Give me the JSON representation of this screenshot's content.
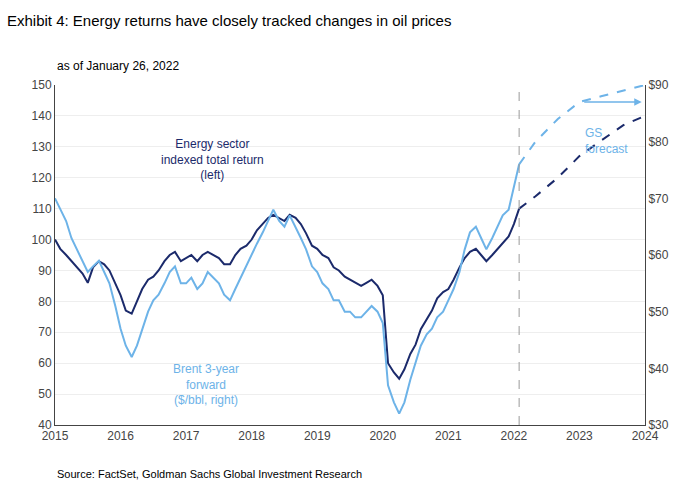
{
  "chart_data": {
    "type": "line",
    "title": "Exhibit 4: Energy returns have closely tracked changes in oil prices",
    "subtitle": "as of January 26, 2022",
    "source": "Source: FactSet, Goldman Sachs Global Investment Research",
    "xlim": [
      2015,
      2024
    ],
    "xticks": [
      2015,
      2016,
      2017,
      2018,
      2019,
      2020,
      2021,
      2022,
      2023,
      2024
    ],
    "ylim": [
      40,
      150
    ],
    "yticks": [
      40,
      50,
      60,
      70,
      80,
      90,
      100,
      110,
      120,
      130,
      140,
      150
    ],
    "y2lim": [
      30,
      90
    ],
    "y2ticks": [
      {
        "value": 30,
        "label": "$30"
      },
      {
        "value": 40,
        "label": "$40"
      },
      {
        "value": 50,
        "label": "$50"
      },
      {
        "value": 60,
        "label": "$60"
      },
      {
        "value": 70,
        "label": "$70"
      },
      {
        "value": 80,
        "label": "$80"
      },
      {
        "value": 90,
        "label": "$90"
      }
    ],
    "grid": "y",
    "series": [
      {
        "color": "#1b2a6b",
        "line_style": "solid",
        "axis": "y",
        "x": [
          2015.0,
          2015.08,
          2015.17,
          2015.25,
          2015.33,
          2015.42,
          2015.5,
          2015.58,
          2015.67,
          2015.75,
          2015.83,
          2015.92,
          2016.0,
          2016.08,
          2016.17,
          2016.25,
          2016.33,
          2016.42,
          2016.5,
          2016.58,
          2016.67,
          2016.75,
          2016.83,
          2016.92,
          2017.0,
          2017.08,
          2017.17,
          2017.25,
          2017.33,
          2017.42,
          2017.5,
          2017.58,
          2017.67,
          2017.75,
          2017.83,
          2017.92,
          2018.0,
          2018.08,
          2018.17,
          2018.25,
          2018.33,
          2018.42,
          2018.5,
          2018.58,
          2018.67,
          2018.75,
          2018.83,
          2018.92,
          2019.0,
          2019.08,
          2019.17,
          2019.25,
          2019.33,
          2019.42,
          2019.5,
          2019.58,
          2019.67,
          2019.75,
          2019.83,
          2019.92,
          2020.0,
          2020.08,
          2020.17,
          2020.25,
          2020.33,
          2020.42,
          2020.5,
          2020.58,
          2020.67,
          2020.75,
          2020.83,
          2020.92,
          2021.0,
          2021.08,
          2021.17,
          2021.25,
          2021.33,
          2021.42,
          2021.5,
          2021.58,
          2021.67,
          2021.75,
          2021.83,
          2021.92,
          2022.0,
          2022.08
        ],
        "values": [
          100,
          97,
          95,
          93,
          91,
          89,
          86,
          91,
          93,
          92,
          90,
          86,
          82,
          77,
          76,
          80,
          84,
          87,
          88,
          90,
          93,
          95,
          96,
          93,
          94,
          95,
          93,
          95,
          96,
          95,
          94,
          92,
          92,
          95,
          97,
          98,
          100,
          103,
          105,
          107,
          108,
          107,
          106,
          108,
          107,
          105,
          102,
          98,
          97,
          95,
          94,
          91,
          90,
          88,
          87,
          86,
          85,
          86,
          87,
          85,
          82,
          60,
          57,
          55,
          58,
          63,
          66,
          71,
          74,
          77,
          81,
          83,
          84,
          87,
          91,
          94,
          96,
          97,
          95,
          93,
          95,
          97,
          99,
          101,
          105,
          110
        ]
      },
      {
        "color": "#1b2a6b",
        "line_style": "dash",
        "axis": "y",
        "x": [
          2022.08,
          2022.33,
          2022.67,
          2023.0,
          2023.33,
          2023.67,
          2024.0
        ],
        "values": [
          110,
          114,
          120,
          127,
          132,
          137,
          140
        ]
      },
      {
        "color": "#6db3e8",
        "line_style": "solid",
        "axis": "y2",
        "x": [
          2015.0,
          2015.08,
          2015.17,
          2015.25,
          2015.33,
          2015.42,
          2015.5,
          2015.58,
          2015.67,
          2015.75,
          2015.83,
          2015.92,
          2016.0,
          2016.08,
          2016.17,
          2016.25,
          2016.33,
          2016.42,
          2016.5,
          2016.58,
          2016.67,
          2016.75,
          2016.83,
          2016.92,
          2017.0,
          2017.08,
          2017.17,
          2017.25,
          2017.33,
          2017.42,
          2017.5,
          2017.58,
          2017.67,
          2017.75,
          2017.83,
          2017.92,
          2018.0,
          2018.08,
          2018.17,
          2018.25,
          2018.33,
          2018.42,
          2018.5,
          2018.58,
          2018.67,
          2018.75,
          2018.83,
          2018.92,
          2019.0,
          2019.08,
          2019.17,
          2019.25,
          2019.33,
          2019.42,
          2019.5,
          2019.58,
          2019.67,
          2019.75,
          2019.83,
          2019.92,
          2020.0,
          2020.08,
          2020.17,
          2020.25,
          2020.33,
          2020.42,
          2020.5,
          2020.58,
          2020.67,
          2020.75,
          2020.83,
          2020.92,
          2021.0,
          2021.08,
          2021.17,
          2021.25,
          2021.33,
          2021.42,
          2021.5,
          2021.58,
          2021.67,
          2021.75,
          2021.83,
          2021.92,
          2022.0,
          2022.08
        ],
        "values": [
          70,
          68,
          66,
          63,
          61,
          59,
          57,
          58,
          59,
          57,
          55,
          51,
          47,
          44,
          42,
          44,
          47,
          50,
          52,
          53,
          55,
          57,
          58,
          55,
          55,
          56,
          54,
          55,
          57,
          56,
          55,
          53,
          52,
          54,
          56,
          58,
          60,
          62,
          64,
          66,
          68,
          66,
          65,
          67,
          65,
          63,
          61,
          58,
          57,
          55,
          54,
          52,
          52,
          50,
          50,
          49,
          49,
          50,
          51,
          50,
          48,
          37,
          34,
          32,
          34,
          38,
          41,
          44,
          46,
          47,
          49,
          50,
          52,
          54,
          57,
          61,
          64,
          65,
          63,
          61,
          63,
          65,
          67,
          68,
          72,
          76
        ]
      },
      {
        "color": "#6db3e8",
        "line_style": "dash",
        "axis": "y2",
        "x": [
          2022.08,
          2022.33,
          2022.67,
          2023.0,
          2023.33,
          2023.67,
          2024.0
        ],
        "values": [
          76,
          80,
          84,
          87,
          88,
          89,
          90
        ]
      }
    ],
    "vlines": [
      2022.08
    ],
    "annotations": [
      {
        "text": "Energy sector\nindexed total return\n(left)",
        "x": 2017.4,
        "y": 126,
        "axis": "y",
        "color": "#1b2a6b",
        "align": "center"
      },
      {
        "text": "Brent 3-year\nforward\n($/bbl, right)",
        "x": 2017.3,
        "y": 53,
        "axis": "y",
        "color": "#6db3e8",
        "align": "center"
      },
      {
        "text": "GS\nforecast",
        "x": 2023.05,
        "y": 132,
        "axis": "y",
        "color": "#6db3e8",
        "align": "left"
      }
    ],
    "arrows": [
      {
        "x_start": 2023.05,
        "x_end": 2023.95,
        "y": 87,
        "axis": "y2",
        "color": "#6db3e8"
      }
    ]
  }
}
